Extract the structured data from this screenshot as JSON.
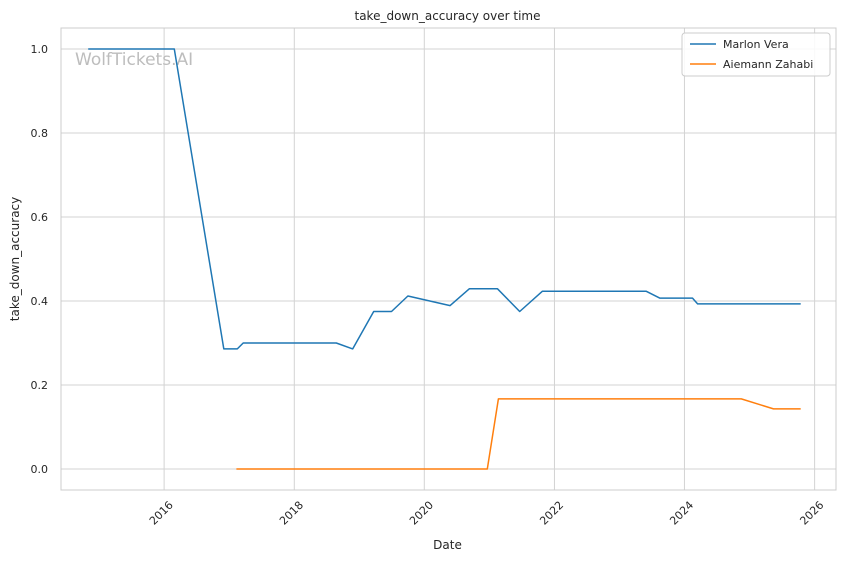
{
  "chart_data": {
    "type": "line",
    "title": "take_down_accuracy over time",
    "xlabel": "Date",
    "ylabel": "take_down_accuracy",
    "watermark": "WolfTickets.AI",
    "x_ticks": [
      "2016",
      "2018",
      "2020",
      "2022",
      "2024",
      "2026"
    ],
    "y_ticks": [
      "0.0",
      "0.2",
      "0.4",
      "0.6",
      "0.8",
      "1.0"
    ],
    "xlim": [
      "2014-06-01",
      "2026-05-01"
    ],
    "ylim": [
      -0.05,
      1.05
    ],
    "grid": true,
    "legend_position": "top-right",
    "series": [
      {
        "name": "Marlon Vera",
        "color": "#1f77b4",
        "points": [
          [
            "2014-11-01",
            1.0
          ],
          [
            "2016-02-27",
            1.0
          ],
          [
            "2016-12-01",
            0.286
          ],
          [
            "2017-02-15",
            0.286
          ],
          [
            "2017-03-20",
            0.3
          ],
          [
            "2018-08-25",
            0.3
          ],
          [
            "2018-11-25",
            0.286
          ],
          [
            "2019-03-23",
            0.375
          ],
          [
            "2019-07-01",
            0.375
          ],
          [
            "2019-10-01",
            0.412
          ],
          [
            "2020-05-25",
            0.389
          ],
          [
            "2020-09-10",
            0.429
          ],
          [
            "2021-02-15",
            0.429
          ],
          [
            "2021-06-20",
            0.375
          ],
          [
            "2021-10-25",
            0.423
          ],
          [
            "2023-06-01",
            0.423
          ],
          [
            "2023-08-15",
            0.407
          ],
          [
            "2024-02-15",
            0.407
          ],
          [
            "2024-03-15",
            0.393
          ],
          [
            "2025-10-15",
            0.393
          ]
        ]
      },
      {
        "name": "Aiemann Zahabi",
        "color": "#ff7f0e",
        "points": [
          [
            "2017-02-10",
            0.0
          ],
          [
            "2020-12-20",
            0.0
          ],
          [
            "2021-02-20",
            0.167
          ],
          [
            "2024-11-15",
            0.167
          ],
          [
            "2025-05-15",
            0.143
          ],
          [
            "2025-10-15",
            0.143
          ]
        ]
      }
    ]
  }
}
